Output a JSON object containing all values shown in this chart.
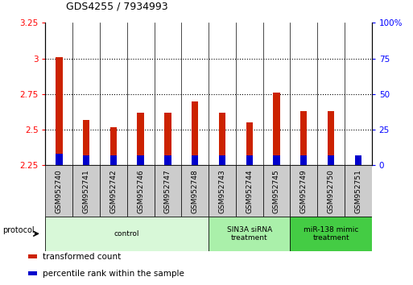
{
  "title": "GDS4255 / 7934993",
  "samples": [
    "GSM952740",
    "GSM952741",
    "GSM952742",
    "GSM952746",
    "GSM952747",
    "GSM952748",
    "GSM952743",
    "GSM952744",
    "GSM952745",
    "GSM952749",
    "GSM952750",
    "GSM952751"
  ],
  "transformed_count": [
    3.01,
    2.57,
    2.52,
    2.62,
    2.62,
    2.7,
    2.62,
    2.55,
    2.76,
    2.63,
    2.63,
    2.29
  ],
  "percentile_rank_pct": [
    8,
    7,
    7,
    7,
    7,
    7,
    7,
    7,
    7,
    7,
    7,
    7
  ],
  "bar_color_red": "#cc2200",
  "bar_color_blue": "#0000cc",
  "ylim_left": [
    2.25,
    3.25
  ],
  "ylim_right": [
    0,
    100
  ],
  "yticks_left": [
    2.25,
    2.5,
    2.75,
    3.0,
    3.25
  ],
  "yticks_right": [
    0,
    25,
    50,
    75,
    100
  ],
  "ytick_labels_left": [
    "2.25",
    "2.5",
    "2.75",
    "3",
    "3.25"
  ],
  "ytick_labels_right": [
    "0",
    "25",
    "50",
    "75",
    "100%"
  ],
  "groups": [
    {
      "label": "control",
      "indices": [
        0,
        1,
        2,
        3,
        4,
        5
      ],
      "color": "#d8f8d8"
    },
    {
      "label": "SIN3A siRNA\ntreatment",
      "indices": [
        6,
        7,
        8
      ],
      "color": "#aaf0aa"
    },
    {
      "label": "miR-138 mimic\ntreatment",
      "indices": [
        9,
        10,
        11
      ],
      "color": "#44cc44"
    }
  ],
  "protocol_label": "protocol",
  "legend_items": [
    {
      "label": "transformed count",
      "color": "#cc2200"
    },
    {
      "label": "percentile rank within the sample",
      "color": "#0000cc"
    }
  ],
  "bar_width": 0.25,
  "baseline": 2.25,
  "grid_color": "#000000",
  "background_color": "#ffffff",
  "ticklabel_bg": "#cccccc"
}
